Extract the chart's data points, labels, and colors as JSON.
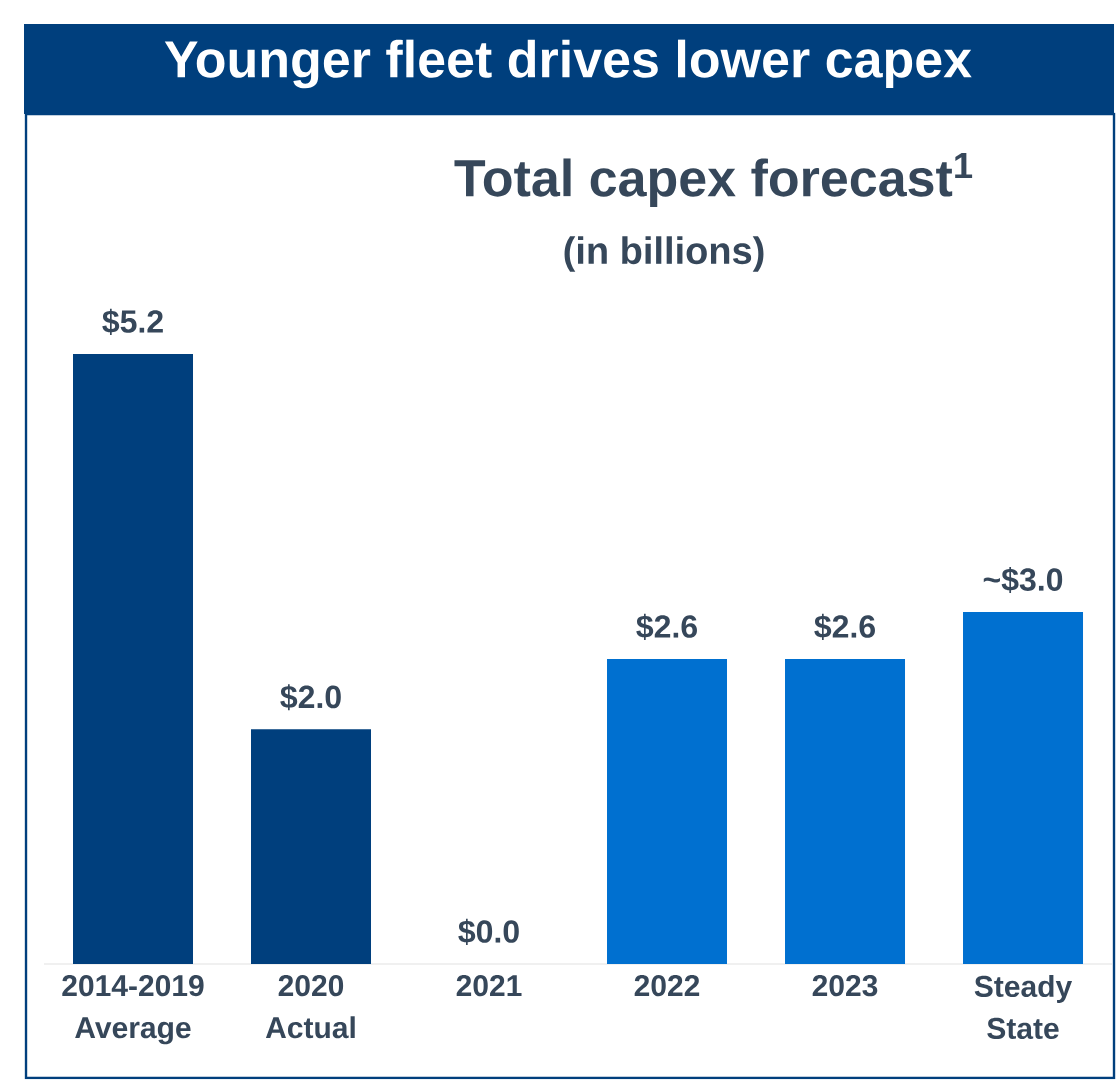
{
  "chart_data": {
    "type": "bar",
    "title": "Younger fleet drives lower capex",
    "subtitle": "Total capex forecast$^{1}$",
    "annotations": [
      "(in billions)"
    ],
    "categories": [
      "2014-2019 Average",
      "2020 Actual",
      "2021",
      "2022",
      "2023",
      "Steady State"
    ],
    "values": [
      5.2,
      2.0,
      0.0,
      2.6,
      2.6,
      3.0
    ],
    "colors": [
      "#003f7d",
      "#003f7d",
      "#003f7d",
      "#0070d0",
      "#0070d0",
      "#0070d0"
    ],
    "value_labels": [
      "$5.2",
      "$2.0",
      "$0.0",
      "$2.6",
      "$2.6",
      "~$3.0"
    ]
  }
}
